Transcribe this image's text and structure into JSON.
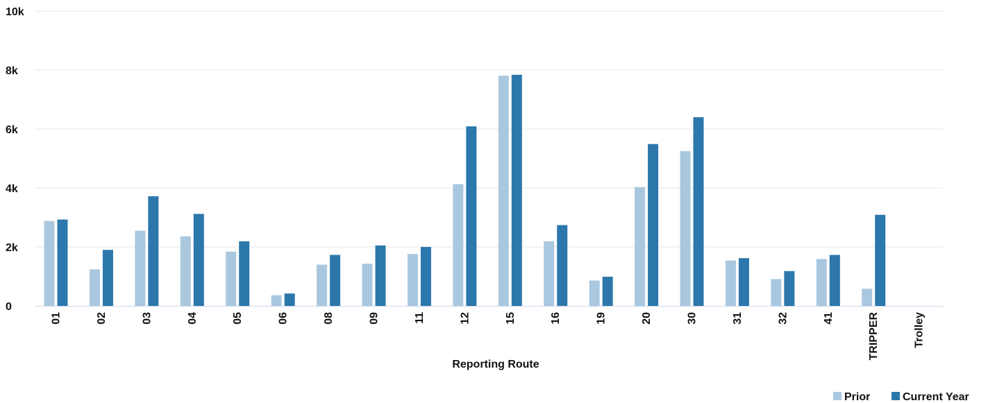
{
  "chart_data": {
    "type": "bar",
    "xlabel": "Reporting Route",
    "ylabel": "",
    "ylim": [
      0,
      10000
    ],
    "yticks": [
      0,
      2000,
      4000,
      6000,
      8000,
      10000
    ],
    "ytick_labels": [
      "0",
      "2k",
      "4k",
      "6k",
      "8k",
      "10k"
    ],
    "grid": true,
    "legend_position": "bottom-right",
    "categories": [
      "01",
      "02",
      "03",
      "04",
      "05",
      "06",
      "08",
      "09",
      "11",
      "12",
      "15",
      "16",
      "19",
      "20",
      "30",
      "31",
      "32",
      "41",
      "TRIPPER",
      "Trolley"
    ],
    "series": [
      {
        "name": "Prior",
        "color": "#a9c8e0",
        "values": [
          2880,
          1240,
          2550,
          2360,
          1840,
          360,
          1400,
          1430,
          1760,
          4130,
          7810,
          2190,
          860,
          4030,
          5250,
          1540,
          910,
          1590,
          580,
          0
        ]
      },
      {
        "name": "Current Year",
        "color": "#2c77ab",
        "values": [
          2930,
          1900,
          3720,
          3120,
          2190,
          420,
          1730,
          2050,
          2000,
          6090,
          7840,
          2740,
          990,
          5490,
          6400,
          1620,
          1180,
          1730,
          3090,
          0
        ]
      }
    ]
  }
}
